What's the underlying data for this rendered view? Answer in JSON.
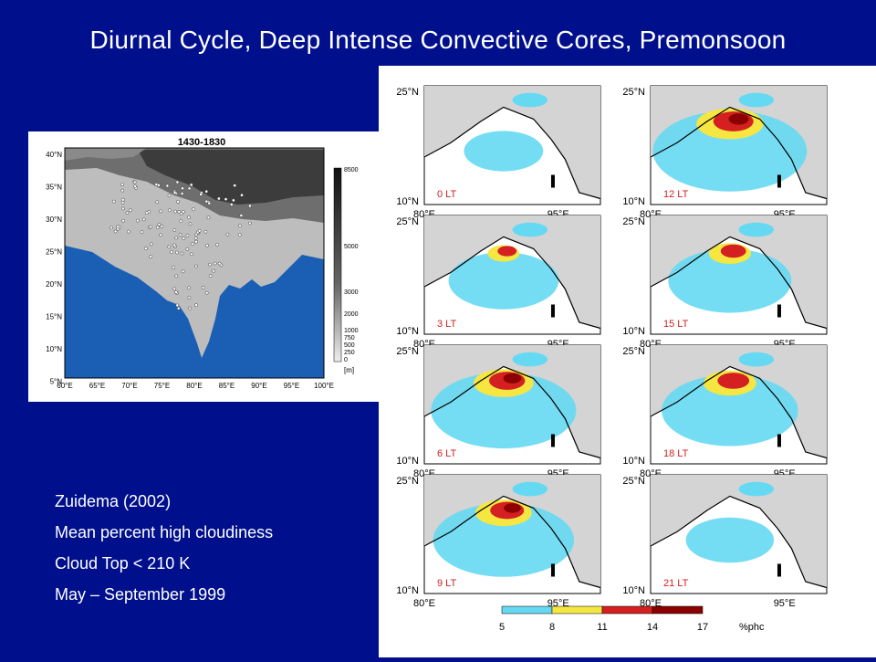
{
  "slide": {
    "title": "Diurnal Cycle, Deep Intense Convective Cores, Premonsoon",
    "notes": [
      "Zuidema (2002)",
      "Mean percent high cloudiness",
      "Cloud Top < 210 K",
      "May – September 1999"
    ]
  },
  "left_map": {
    "title": "1430-1830",
    "lat_labels": [
      "40°N",
      "35°N",
      "30°N",
      "25°N",
      "20°N",
      "15°N",
      "10°N",
      "5°N"
    ],
    "lon_labels": [
      "60°E",
      "65°E",
      "70°E",
      "75°E",
      "80°E",
      "85°E",
      "90°E",
      "95°E",
      "100°E"
    ],
    "colorbar_labels": [
      "8500",
      "5000",
      "3000",
      "2000",
      "1000",
      "750",
      "500",
      "250",
      "0"
    ],
    "colorbar_unit": "[m]",
    "colors": {
      "ocean": "#1a5fb4",
      "land": "#bdbdbd",
      "highland": "#6e6e6e",
      "plateau": "#3c3c3c"
    }
  },
  "panels": [
    {
      "time": "0 LT",
      "intensity": 0.1
    },
    {
      "time": "12 LT",
      "intensity": 0.95
    },
    {
      "time": "3 LT",
      "intensity": 0.45
    },
    {
      "time": "15 LT",
      "intensity": 0.6
    },
    {
      "time": "6 LT",
      "intensity": 0.85
    },
    {
      "time": "18 LT",
      "intensity": 0.75
    },
    {
      "time": "9 LT",
      "intensity": 0.8
    },
    {
      "time": "21 LT",
      "intensity": 0.2
    }
  ],
  "panel_axes": {
    "lat_top": "25°N",
    "lat_bottom": "10°N",
    "lon_left": "80°E",
    "lon_right": "95°E"
  },
  "colorbar": {
    "labels": [
      "5",
      "8",
      "11",
      "14",
      "17",
      "%phc"
    ],
    "colors": [
      "#66d9f2",
      "#f5e642",
      "#d42020",
      "#8b0000"
    ]
  }
}
